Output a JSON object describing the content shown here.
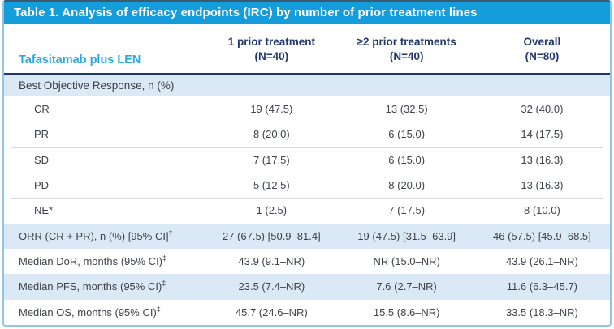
{
  "title": "Table 1. Analysis of efficacy endpoints (IRC) by number of prior treatment lines",
  "header": {
    "row_label": "Tafasitamab plus LEN",
    "columns": [
      {
        "line1": "1 prior treatment",
        "line2": "(N=40)"
      },
      {
        "line1": "≥2 prior treatments",
        "line2": "(N=40)"
      },
      {
        "line1": "Overall",
        "line2": "(N=80)"
      }
    ]
  },
  "section": {
    "label": "Best Objective Response, n (%)"
  },
  "rows": [
    {
      "label": "CR",
      "values": [
        "19 (47.5)",
        "13 (32.5)",
        "32 (40.0)"
      ]
    },
    {
      "label": "PR",
      "values": [
        "8 (20.0)",
        "6 (15.0)",
        "14 (17.5)"
      ]
    },
    {
      "label": "SD",
      "values": [
        "7 (17.5)",
        "6 (15.0)",
        "13 (16.3)"
      ]
    },
    {
      "label": "PD",
      "values": [
        "5 (12.5)",
        "8 (20.0)",
        "13 (16.3)"
      ]
    },
    {
      "label": "NE*",
      "values": [
        "1 (2.5)",
        "7 (17.5)",
        "8 (10.0)"
      ]
    },
    {
      "label": "ORR (CR + PR), n (%) [95% CI]",
      "sup": "†",
      "values": [
        "27 (67.5) [50.9–81.4]",
        "19 (47.5) [31.5–63.9]",
        "46 (57.5) [45.9–68.5]"
      ]
    },
    {
      "label": "Median DoR, months (95% CI)",
      "sup": "‡",
      "values": [
        "43.9 (9.1–NR)",
        "NR (15.0–NR)",
        "43.9 (26.1–NR)"
      ]
    },
    {
      "label": "Median PFS, months (95% CI)",
      "sup": "‡",
      "values": [
        "23.5 (7.4–NR)",
        "7.6 (2.7–NR)",
        "11.6 (6.3–45.7)"
      ]
    },
    {
      "label": "Median OS, months (95% CI)",
      "sup": "‡",
      "values": [
        "45.7 (24.6–NR)",
        "15.5 (8.6–NR)",
        "33.5 (18.3–NR)"
      ]
    }
  ],
  "colors": {
    "title_bar": "#149cdb",
    "drug_label": "#2aa9e0",
    "header_navy": "#21386b",
    "band_blue": "#dbe8f6",
    "outer_border": "#8fc6e3",
    "body_text": "#3f434a"
  }
}
